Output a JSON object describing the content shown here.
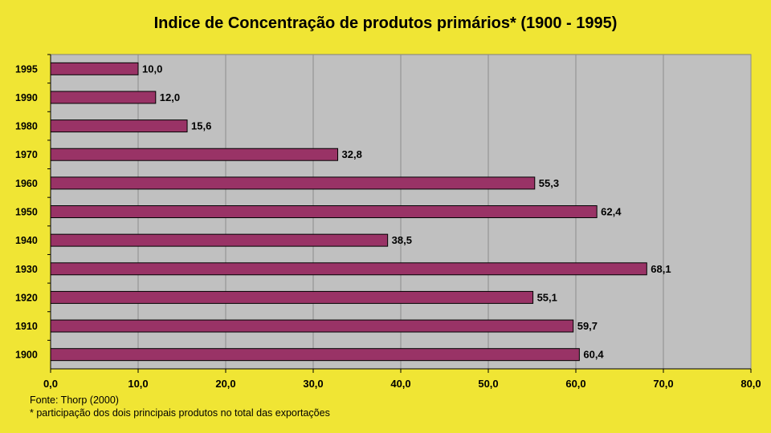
{
  "chart_data": {
    "type": "bar",
    "orientation": "horizontal",
    "title": "Indice de Concentração de produtos primários*  (1900 - 1995)",
    "categories": [
      "1995",
      "1990",
      "1980",
      "1970",
      "1960",
      "1950",
      "1940",
      "1930",
      "1920",
      "1910",
      "1900"
    ],
    "values": [
      10.0,
      12.0,
      15.6,
      32.8,
      55.3,
      62.4,
      38.5,
      68.1,
      55.1,
      59.7,
      60.4
    ],
    "value_labels": [
      "10,0",
      "12,0",
      "15,6",
      "32,8",
      "55,3",
      "62,4",
      "38,5",
      "68,1",
      "55,1",
      "59,7",
      "60,4"
    ],
    "xlim": [
      0,
      80
    ],
    "x_ticks": [
      0,
      10,
      20,
      30,
      40,
      50,
      60,
      70,
      80
    ],
    "x_tick_labels": [
      "0,0",
      "10,0",
      "20,0",
      "30,0",
      "40,0",
      "50,0",
      "60,0",
      "70,0",
      "80,0"
    ],
    "xlabel": "",
    "ylabel": "",
    "grid": true,
    "colors": {
      "bar": "#993366",
      "bar_border": "#000000",
      "plot_bg": "#c0c0c0",
      "background": "#f0e534",
      "grid": "#8c8c8c"
    }
  },
  "notes": {
    "source": "Fonte: Thorp (2000)",
    "asterisk": "* participação dos dois principais produtos no total das exportações"
  }
}
